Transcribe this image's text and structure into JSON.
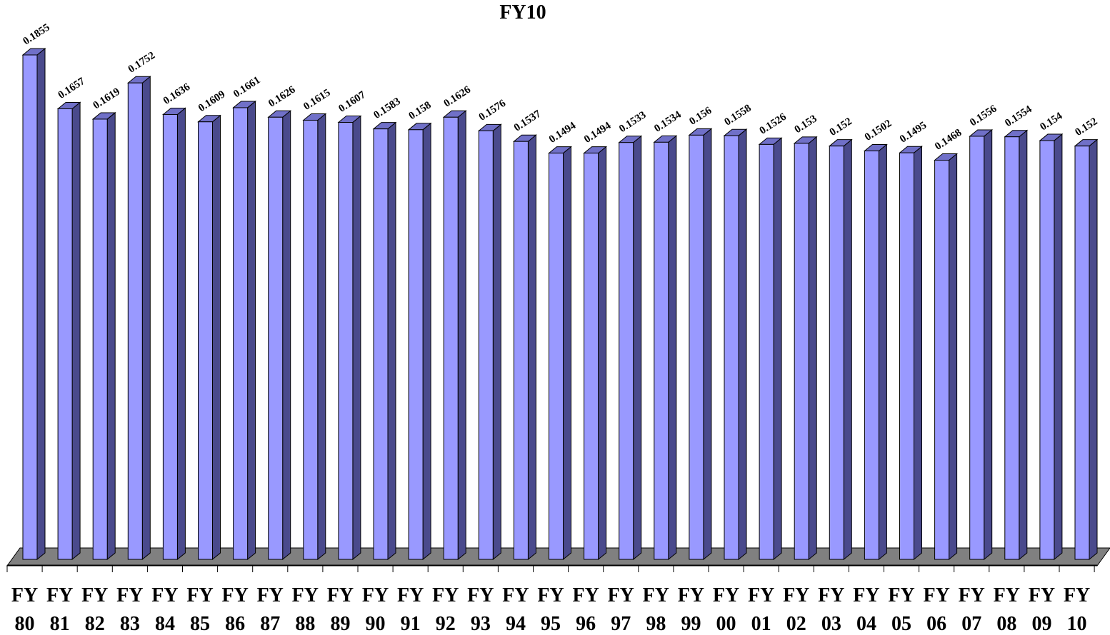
{
  "chart_data": {
    "type": "bar",
    "title": "FY10",
    "xlabel": "",
    "ylabel": "",
    "style": "3d-column",
    "grid": false,
    "legend": "none",
    "ylim": [
      0,
      0.1855
    ],
    "colors": {
      "bar_front": "#9999ff",
      "bar_side": "#4a4a8c",
      "bar_top": "#7070c8",
      "floor": "#808080",
      "stroke": "#000000"
    },
    "categories": [
      [
        "FY",
        "80"
      ],
      [
        "FY",
        "81"
      ],
      [
        "FY",
        "82"
      ],
      [
        "FY",
        "83"
      ],
      [
        "FY",
        "84"
      ],
      [
        "FY",
        "85"
      ],
      [
        "FY",
        "86"
      ],
      [
        "FY",
        "87"
      ],
      [
        "FY",
        "88"
      ],
      [
        "FY",
        "89"
      ],
      [
        "FY",
        "90"
      ],
      [
        "FY",
        "91"
      ],
      [
        "FY",
        "92"
      ],
      [
        "FY",
        "93"
      ],
      [
        "FY",
        "94"
      ],
      [
        "FY",
        "95"
      ],
      [
        "FY",
        "96"
      ],
      [
        "FY",
        "97"
      ],
      [
        "FY",
        "98"
      ],
      [
        "FY",
        "99"
      ],
      [
        "FY",
        "00"
      ],
      [
        "FY",
        "01"
      ],
      [
        "FY",
        "02"
      ],
      [
        "FY",
        "03"
      ],
      [
        "FY",
        "04"
      ],
      [
        "FY",
        "05"
      ],
      [
        "FY",
        "06"
      ],
      [
        "FY",
        "07"
      ],
      [
        "FY",
        "08"
      ],
      [
        "FY",
        "09"
      ],
      [
        "FY",
        "10"
      ]
    ],
    "values": [
      0.1855,
      0.1657,
      0.1619,
      0.1752,
      0.1636,
      0.1609,
      0.1661,
      0.1626,
      0.1615,
      0.1607,
      0.1583,
      0.158,
      0.1626,
      0.1576,
      0.1537,
      0.1494,
      0.1494,
      0.1533,
      0.1534,
      0.156,
      0.1558,
      0.1526,
      0.153,
      0.152,
      0.1502,
      0.1495,
      0.1468,
      0.1556,
      0.1554,
      0.154,
      0.152
    ],
    "data_labels": [
      "0.1855",
      "0.1657",
      "0.1619",
      "0.1752",
      "0.1636",
      "0.1609",
      "0.1661",
      "0.1626",
      "0.1615",
      "0.1607",
      "0.1583",
      "0.158",
      "0.1626",
      "0.1576",
      "0.1537",
      "0.1494",
      "0.1494",
      "0.1533",
      "0.1534",
      "0.156",
      "0.1558",
      "0.1526",
      "0.153",
      "0.152",
      "0.1502",
      "0.1495",
      "0.1468",
      "0.1556",
      "0.1554",
      "0.154",
      "0.152"
    ]
  }
}
